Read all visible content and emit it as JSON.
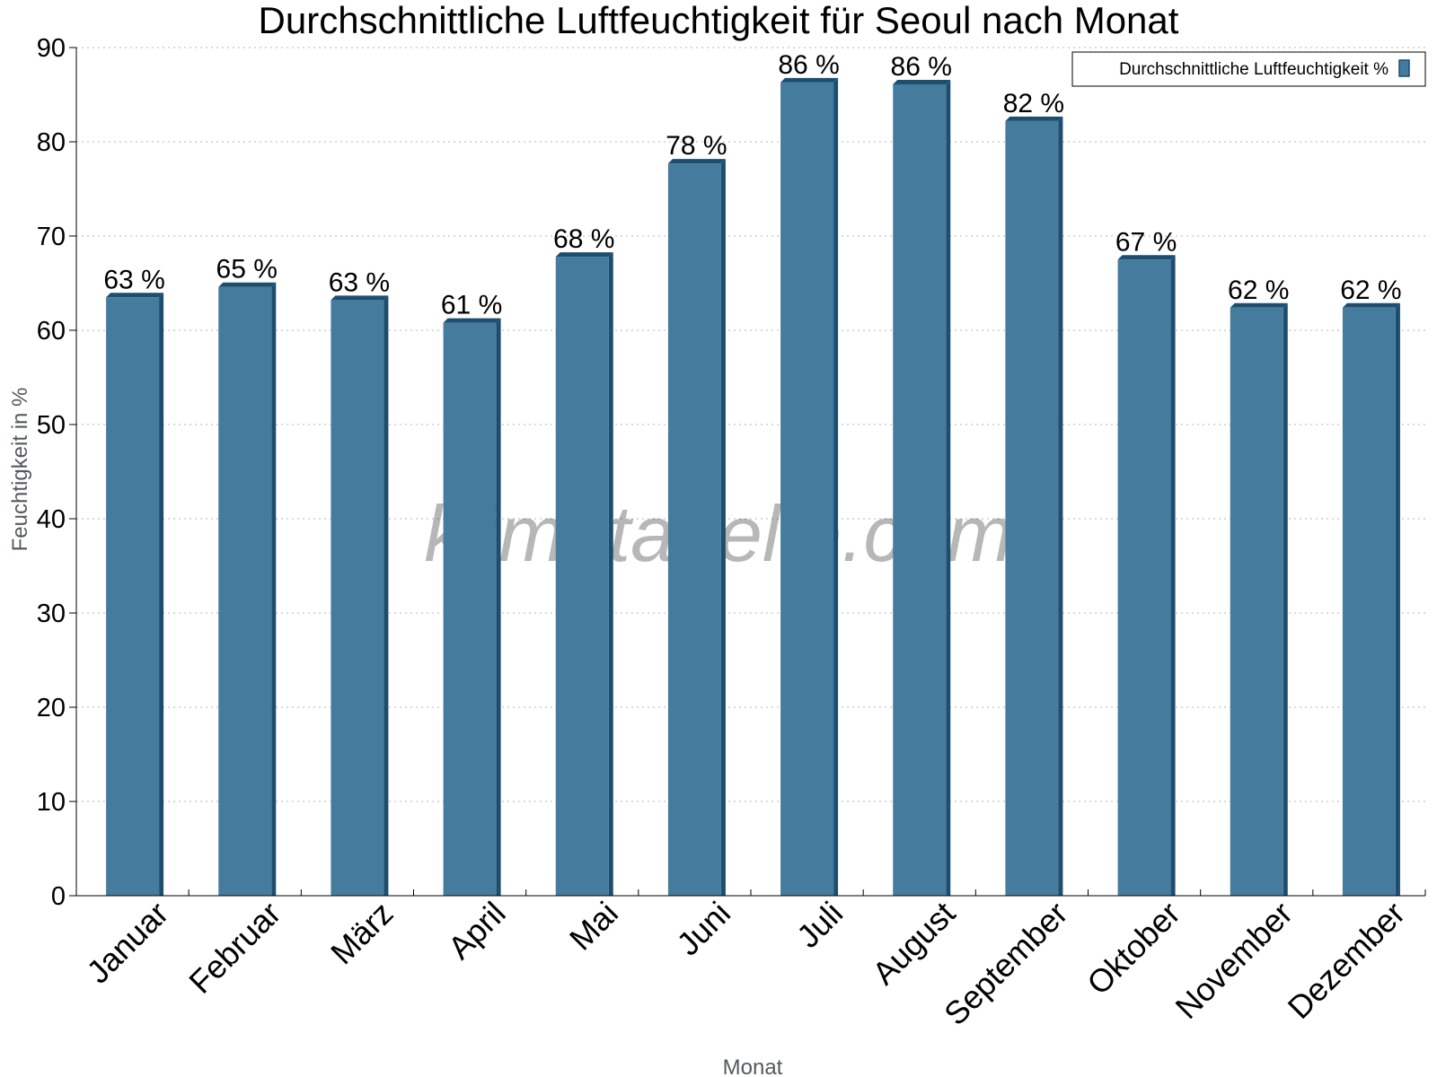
{
  "chart_data": {
    "type": "bar",
    "title": "Durchschnittliche Luftfeuchtigkeit für Seoul nach Monat",
    "xlabel": "Monat",
    "ylabel": "Feuchtigkeit in %",
    "categories": [
      "Januar",
      "Februar",
      "März",
      "April",
      "Mai",
      "Juni",
      "Juli",
      "August",
      "September",
      "Oktober",
      "November",
      "Dezember"
    ],
    "series": [
      {
        "name": "Durchschnittliche Luftfeuchtigkeit %",
        "values": [
          63.5,
          64.6,
          63.2,
          60.8,
          67.8,
          77.7,
          86.3,
          86.1,
          82.2,
          67.5,
          62.4,
          62.4
        ],
        "labels": [
          "63 %",
          "65 %",
          "63 %",
          "61 %",
          "68 %",
          "78 %",
          "86 %",
          "86 %",
          "82 %",
          "67 %",
          "62 %",
          "62 %"
        ],
        "color": "#457b9d",
        "edge_color": "#1d4e6e"
      }
    ],
    "ylim": [
      0,
      90
    ],
    "yticks": [
      0,
      10,
      20,
      30,
      40,
      50,
      60,
      70,
      80,
      90
    ],
    "grid": "horizontal-dotted",
    "legend": "top-right",
    "watermark": "klimatabelle.com"
  }
}
